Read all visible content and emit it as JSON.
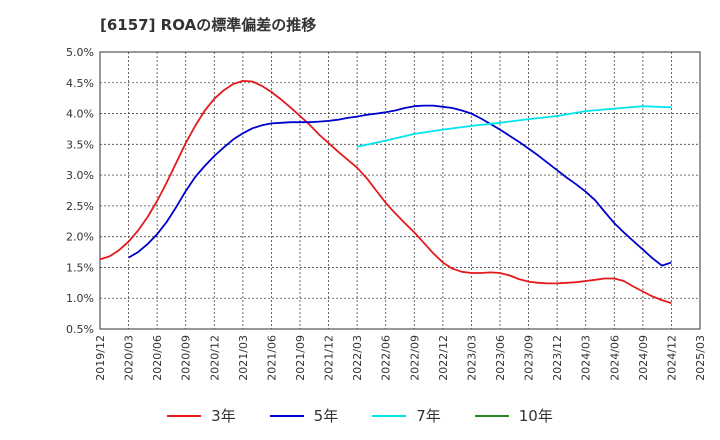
{
  "title": "[6157]  ROAの標準偏差の推移",
  "chart_data": {
    "type": "line",
    "title": "[6157]  ROAの標準偏差の推移",
    "xlabel": "",
    "ylabel": "",
    "ylim": [
      0.5,
      5.0
    ],
    "y_ticks": [
      "0.5%",
      "1.0%",
      "1.5%",
      "2.0%",
      "2.5%",
      "3.0%",
      "3.5%",
      "4.0%",
      "4.5%",
      "5.0%"
    ],
    "x_ticks": [
      "2019/12",
      "2020/03",
      "2020/06",
      "2020/09",
      "2020/12",
      "2021/03",
      "2021/06",
      "2021/09",
      "2021/12",
      "2022/03",
      "2022/06",
      "2022/09",
      "2022/12",
      "2023/03",
      "2023/06",
      "2023/09",
      "2023/12",
      "2024/03",
      "2024/06",
      "2024/09",
      "2024/12",
      "2025/03"
    ],
    "grid": true,
    "legend_position": "bottom",
    "series": [
      {
        "name": "3年",
        "color": "#e41a1c",
        "x": [
          "2019/12",
          "2020/01",
          "2020/02",
          "2020/03",
          "2020/04",
          "2020/05",
          "2020/06",
          "2020/07",
          "2020/08",
          "2020/09",
          "2020/10",
          "2020/11",
          "2020/12",
          "2021/01",
          "2021/02",
          "2021/03",
          "2021/04",
          "2021/05",
          "2021/06",
          "2021/07",
          "2021/08",
          "2021/09",
          "2021/10",
          "2021/11",
          "2021/12",
          "2022/01",
          "2022/02",
          "2022/03",
          "2022/04",
          "2022/05",
          "2022/06",
          "2022/07",
          "2022/08",
          "2022/09",
          "2022/10",
          "2022/11",
          "2022/12",
          "2023/01",
          "2023/02",
          "2023/03",
          "2023/04",
          "2023/05",
          "2023/06",
          "2023/07",
          "2023/08",
          "2023/09",
          "2023/10",
          "2023/11",
          "2023/12",
          "2024/01",
          "2024/02",
          "2024/03",
          "2024/04",
          "2024/05",
          "2024/06",
          "2024/07",
          "2024/08",
          "2024/09",
          "2024/10",
          "2024/11",
          "2024/12"
        ],
        "values": [
          1.63,
          1.68,
          1.78,
          1.92,
          2.1,
          2.32,
          2.58,
          2.88,
          3.2,
          3.52,
          3.8,
          4.05,
          4.24,
          4.38,
          4.48,
          4.53,
          4.52,
          4.45,
          4.35,
          4.23,
          4.1,
          3.96,
          3.82,
          3.66,
          3.52,
          3.38,
          3.25,
          3.12,
          2.95,
          2.75,
          2.55,
          2.38,
          2.22,
          2.07,
          1.9,
          1.73,
          1.58,
          1.48,
          1.43,
          1.41,
          1.41,
          1.42,
          1.41,
          1.37,
          1.31,
          1.27,
          1.25,
          1.24,
          1.24,
          1.25,
          1.26,
          1.28,
          1.3,
          1.32,
          1.32,
          1.28,
          1.19,
          1.11,
          1.03,
          0.97,
          0.92
        ]
      },
      {
        "name": "5年",
        "color": "#0000cd",
        "x": [
          "2020/03",
          "2020/04",
          "2020/05",
          "2020/06",
          "2020/07",
          "2020/08",
          "2020/09",
          "2020/10",
          "2020/11",
          "2020/12",
          "2021/01",
          "2021/02",
          "2021/03",
          "2021/04",
          "2021/05",
          "2021/06",
          "2021/07",
          "2021/08",
          "2021/09",
          "2021/10",
          "2021/11",
          "2021/12",
          "2022/01",
          "2022/02",
          "2022/03",
          "2022/04",
          "2022/05",
          "2022/06",
          "2022/07",
          "2022/08",
          "2022/09",
          "2022/10",
          "2022/11",
          "2022/12",
          "2023/01",
          "2023/02",
          "2023/03",
          "2023/04",
          "2023/05",
          "2023/06",
          "2023/07",
          "2023/08",
          "2023/09",
          "2023/10",
          "2023/11",
          "2023/12",
          "2024/01",
          "2024/02",
          "2024/03",
          "2024/04",
          "2024/05",
          "2024/06",
          "2024/07",
          "2024/08",
          "2024/09",
          "2024/10",
          "2024/11",
          "2024/12"
        ],
        "values": [
          1.66,
          1.75,
          1.88,
          2.04,
          2.24,
          2.48,
          2.74,
          2.97,
          3.15,
          3.31,
          3.45,
          3.58,
          3.68,
          3.76,
          3.81,
          3.84,
          3.85,
          3.86,
          3.86,
          3.86,
          3.87,
          3.88,
          3.9,
          3.93,
          3.95,
          3.98,
          4.0,
          4.02,
          4.05,
          4.09,
          4.12,
          4.13,
          4.13,
          4.11,
          4.09,
          4.05,
          4.0,
          3.92,
          3.83,
          3.74,
          3.64,
          3.54,
          3.43,
          3.32,
          3.2,
          3.08,
          2.96,
          2.85,
          2.73,
          2.59,
          2.4,
          2.22,
          2.07,
          1.93,
          1.79,
          1.65,
          1.53,
          1.58
        ]
      },
      {
        "name": "7年",
        "color": "#00e5ee",
        "x": [
          "2022/03",
          "2022/06",
          "2022/09",
          "2022/12",
          "2023/03",
          "2023/06",
          "2023/09",
          "2023/12",
          "2024/03",
          "2024/06",
          "2024/09",
          "2024/12"
        ],
        "values": [
          3.46,
          3.56,
          3.67,
          3.74,
          3.8,
          3.85,
          3.91,
          3.96,
          4.04,
          4.08,
          4.12,
          4.1
        ]
      },
      {
        "name": "10年",
        "color": "#228b22",
        "x": [],
        "values": []
      }
    ]
  }
}
